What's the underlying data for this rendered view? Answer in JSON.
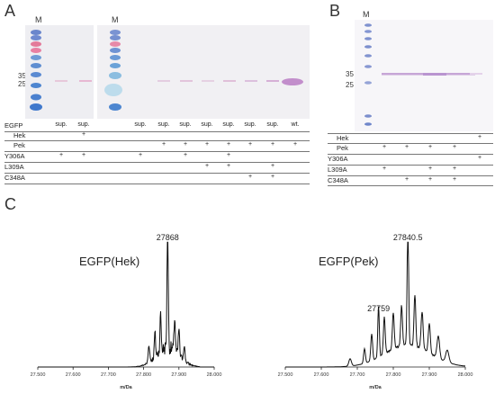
{
  "panels": {
    "a": "A",
    "b": "B",
    "c": "C"
  },
  "gel_a": {
    "marker_label": "M",
    "mw_labels": [
      "35",
      "25"
    ],
    "row_labels": [
      "EGFP",
      "Hek",
      "Pek",
      "Y306A",
      "L309A",
      "C348A"
    ],
    "rows": [
      [
        "",
        "sup.",
        "sup.",
        "",
        "sup.",
        "sup.",
        "sup.",
        "sup.",
        "sup.",
        "sup.",
        "sup.",
        "wt."
      ],
      [
        "",
        "",
        "+",
        "",
        "",
        "",
        "",
        "",
        "",
        "",
        "",
        ""
      ],
      [
        "",
        "",
        "",
        "",
        "",
        "+",
        "+",
        "+",
        "+",
        "+",
        "+",
        "+"
      ],
      [
        "",
        "+",
        "+",
        "",
        "+",
        "",
        "+",
        "",
        "+",
        "",
        "",
        ""
      ],
      [
        "",
        "",
        "",
        "",
        "",
        "",
        "",
        "+",
        "+",
        "",
        "+",
        ""
      ],
      [
        "",
        "",
        "",
        "",
        "",
        "",
        "",
        "",
        "",
        "+",
        "+",
        ""
      ]
    ]
  },
  "gel_b": {
    "marker_label": "M",
    "mw_labels": [
      "35",
      "25"
    ],
    "row_labels": [
      "Hek",
      "Pek",
      "Y306A",
      "L309A",
      "C348A"
    ],
    "rows": [
      [
        "",
        "",
        "",
        "",
        "",
        "+"
      ],
      [
        "+",
        "+",
        "+",
        "+",
        "",
        ""
      ],
      [
        "",
        "",
        "",
        "",
        "",
        "+"
      ],
      [
        "+",
        "",
        "+",
        "+",
        "",
        ""
      ],
      [
        "",
        "+",
        "+",
        "+",
        "",
        ""
      ]
    ]
  },
  "chart_data": [
    {
      "type": "line",
      "title": "EGFP(Hek)",
      "xlabel": "m/Da",
      "ylabel": "",
      "xlim": [
        27500,
        28000
      ],
      "xticks": [
        "27.500",
        "27.600",
        "27.700",
        "27.800",
        "27.900",
        "28.000"
      ],
      "annotations": [
        {
          "x": 27868,
          "label": "27868"
        }
      ],
      "peaks": [
        {
          "x": 27868,
          "y": 1.0,
          "w": 2.5
        },
        {
          "x": 27848,
          "y": 0.3,
          "w": 2.5
        },
        {
          "x": 27888,
          "y": 0.28,
          "w": 2.5
        },
        {
          "x": 27832,
          "y": 0.2,
          "w": 2.5
        },
        {
          "x": 27900,
          "y": 0.22,
          "w": 2.5
        },
        {
          "x": 27815,
          "y": 0.14,
          "w": 3
        },
        {
          "x": 27915,
          "y": 0.12,
          "w": 3
        }
      ],
      "envelope": {
        "center": 27868,
        "amp": 0.16,
        "width": 45,
        "start": 27740,
        "end": 27960
      },
      "noise": 0.06
    },
    {
      "type": "line",
      "title": "EGFP(Pek)",
      "xlabel": "m/Da",
      "ylabel": "",
      "xlim": [
        27500,
        28000
      ],
      "xticks": [
        "27.500",
        "27.600",
        "27.700",
        "27.800",
        "27.900",
        "28.000"
      ],
      "annotations": [
        {
          "x": 27840.5,
          "label": "27840.5"
        },
        {
          "x": 27759,
          "label": "27759"
        }
      ],
      "peaks": [
        {
          "x": 27840.5,
          "y": 1.0,
          "w": 3
        },
        {
          "x": 27759,
          "y": 0.42,
          "w": 3
        },
        {
          "x": 27860,
          "y": 0.42,
          "w": 3.5
        },
        {
          "x": 27823,
          "y": 0.33,
          "w": 3.5
        },
        {
          "x": 27800,
          "y": 0.3,
          "w": 3.5
        },
        {
          "x": 27775,
          "y": 0.3,
          "w": 3.5
        },
        {
          "x": 27740,
          "y": 0.22,
          "w": 3.5
        },
        {
          "x": 27720,
          "y": 0.12,
          "w": 3.5
        },
        {
          "x": 27880,
          "y": 0.3,
          "w": 4
        },
        {
          "x": 27900,
          "y": 0.24,
          "w": 4
        },
        {
          "x": 27925,
          "y": 0.18,
          "w": 5
        },
        {
          "x": 27950,
          "y": 0.1,
          "w": 6
        },
        {
          "x": 27680,
          "y": 0.06,
          "w": 5
        }
      ],
      "envelope": {
        "center": 27840,
        "amp": 0.18,
        "width": 90,
        "start": 27600,
        "end": 28000
      },
      "noise": 0.01
    }
  ]
}
